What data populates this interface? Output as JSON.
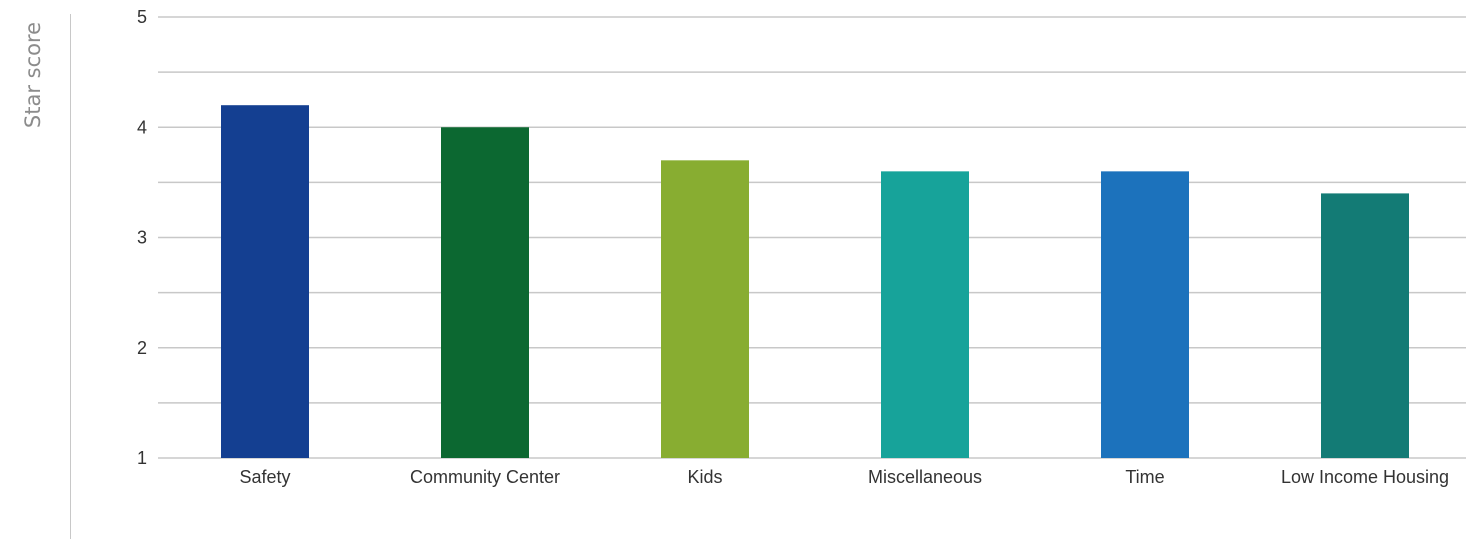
{
  "chart_data": {
    "type": "bar",
    "ylabel": "Star score",
    "xlabel": "",
    "categories": [
      "Safety",
      "Community Center",
      "Kids",
      "Miscellaneous",
      "Time",
      "Low Income Housing"
    ],
    "values": [
      4.2,
      4.0,
      3.7,
      3.6,
      3.6,
      3.4
    ],
    "colors": [
      "#143f91",
      "#0c6831",
      "#88ad31",
      "#17a39a",
      "#1c72bc",
      "#137b75"
    ],
    "ylim": [
      1,
      5
    ],
    "y_ticks": [
      "1",
      "2",
      "3",
      "4",
      "5"
    ],
    "y_tick_values": [
      1,
      2,
      3,
      4,
      5
    ],
    "minor_gridlines": [
      1.5,
      2.5,
      3.5,
      4.5
    ],
    "grid": true,
    "gridline_color": "#c8c8c8",
    "legend": "none"
  }
}
